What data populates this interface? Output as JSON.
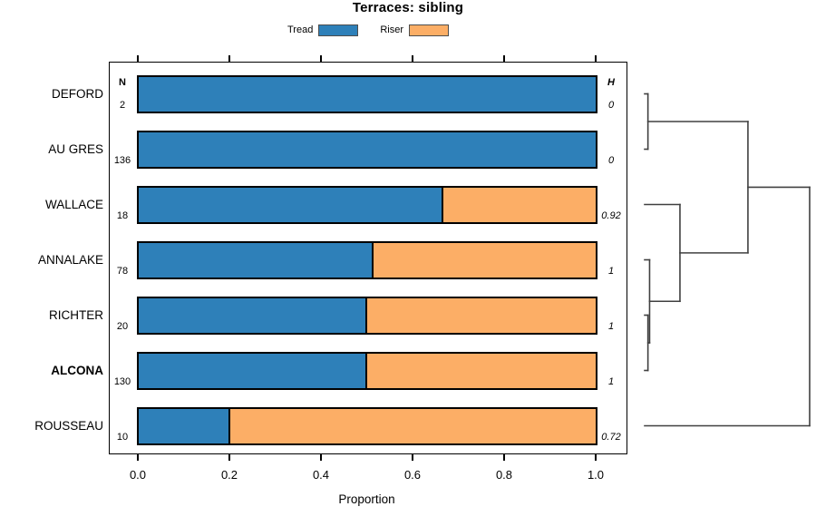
{
  "chart_data": {
    "type": "bar",
    "orientation": "horizontal-stacked",
    "title": "Terraces: sibling",
    "legend": [
      {
        "label": "Tread",
        "color": "#2E80B9"
      },
      {
        "label": "Riser",
        "color": "#FCAE66"
      }
    ],
    "categories": [
      "DEFORD",
      "AU GRES",
      "WALLACE",
      "ANNALAKE",
      "RICHTER",
      "ALCONA",
      "ROUSSEAU"
    ],
    "bold_category": "ALCONA",
    "series": [
      {
        "name": "Tread",
        "values": [
          1.0,
          1.0,
          0.667,
          0.513,
          0.5,
          0.5,
          0.2
        ]
      },
      {
        "name": "Riser",
        "values": [
          0.0,
          0.0,
          0.333,
          0.487,
          0.5,
          0.5,
          0.8
        ]
      }
    ],
    "n_header": "N",
    "n_values": [
      "2",
      "136",
      "18",
      "78",
      "20",
      "130",
      "10"
    ],
    "h_header": "H",
    "h_values": [
      "0",
      "0",
      "0.92",
      "1",
      "1",
      "1",
      "0.72"
    ],
    "xlabel": "Proportion",
    "xlim": [
      0,
      1
    ],
    "x_ticks": [
      0,
      0.2,
      0.4,
      0.6,
      0.8,
      1.0
    ],
    "x_tick_labels": [
      "0.0",
      "0.2",
      "0.4",
      "0.6",
      "0.8",
      "1.0"
    ],
    "grid": false,
    "legend_position": "top",
    "dendrogram": {
      "position": "right",
      "note": "heights h are relative units 0-1 (root=1); y in row index units (0=DEFORD ... 6=ROUSSEAU)",
      "merges": [
        {
          "cluster": [
            "DEFORD",
            "AU GRES"
          ],
          "height": 0.02
        },
        {
          "cluster": [
            "RICHTER",
            "ALCONA"
          ],
          "height": 0.02
        },
        {
          "cluster": [
            "ANNALAKE",
            "RICHTER+ALCONA"
          ],
          "height": 0.03
        },
        {
          "cluster": [
            "WALLACE",
            "ANNALAKE+RICHTER+ALCONA"
          ],
          "height": 0.214
        },
        {
          "cluster": [
            "DEFORD+AU GRES",
            "WALLACE+ANNALAKE+RICHTER+ALCONA"
          ],
          "height": 0.626
        },
        {
          "cluster": [
            "all-above",
            "ROUSSEAU"
          ],
          "height": 1.0
        }
      ],
      "segments": [
        {
          "o": "h",
          "y": 0,
          "h1": 0,
          "h2": 0.02
        },
        {
          "o": "h",
          "y": 1,
          "h1": 0,
          "h2": 0.02
        },
        {
          "o": "v",
          "h": 0.02,
          "y1": 0,
          "y2": 1
        },
        {
          "o": "h",
          "y": 0.5,
          "h1": 0.02,
          "h2": 0.626
        },
        {
          "o": "h",
          "y": 2,
          "h1": 0,
          "h2": 0.214
        },
        {
          "o": "h",
          "y": 3,
          "h1": 0,
          "h2": 0.03
        },
        {
          "o": "h",
          "y": 4,
          "h1": 0,
          "h2": 0.02
        },
        {
          "o": "h",
          "y": 5,
          "h1": 0,
          "h2": 0.02
        },
        {
          "o": "v",
          "h": 0.02,
          "y1": 4,
          "y2": 5
        },
        {
          "o": "h",
          "y": 4.5,
          "h1": 0.02,
          "h2": 0.03
        },
        {
          "o": "v",
          "h": 0.03,
          "y1": 3,
          "y2": 4.5
        },
        {
          "o": "h",
          "y": 3.75,
          "h1": 0.03,
          "h2": 0.214
        },
        {
          "o": "v",
          "h": 0.214,
          "y1": 2,
          "y2": 3.75
        },
        {
          "o": "h",
          "y": 2.875,
          "h1": 0.214,
          "h2": 0.626
        },
        {
          "o": "v",
          "h": 0.626,
          "y1": 0.5,
          "y2": 2.875
        },
        {
          "o": "h",
          "y": 1.6875,
          "h1": 0.626,
          "h2": 1.0
        },
        {
          "o": "h",
          "y": 6,
          "h1": 0,
          "h2": 1.0
        },
        {
          "o": "v",
          "h": 1.0,
          "y1": 1.6875,
          "y2": 6
        }
      ]
    }
  },
  "colors": {
    "tread": "#2E80B9",
    "riser": "#FCAE66",
    "bar_border": "#000000",
    "axis": "#000000",
    "dendro_line": "#404040"
  }
}
